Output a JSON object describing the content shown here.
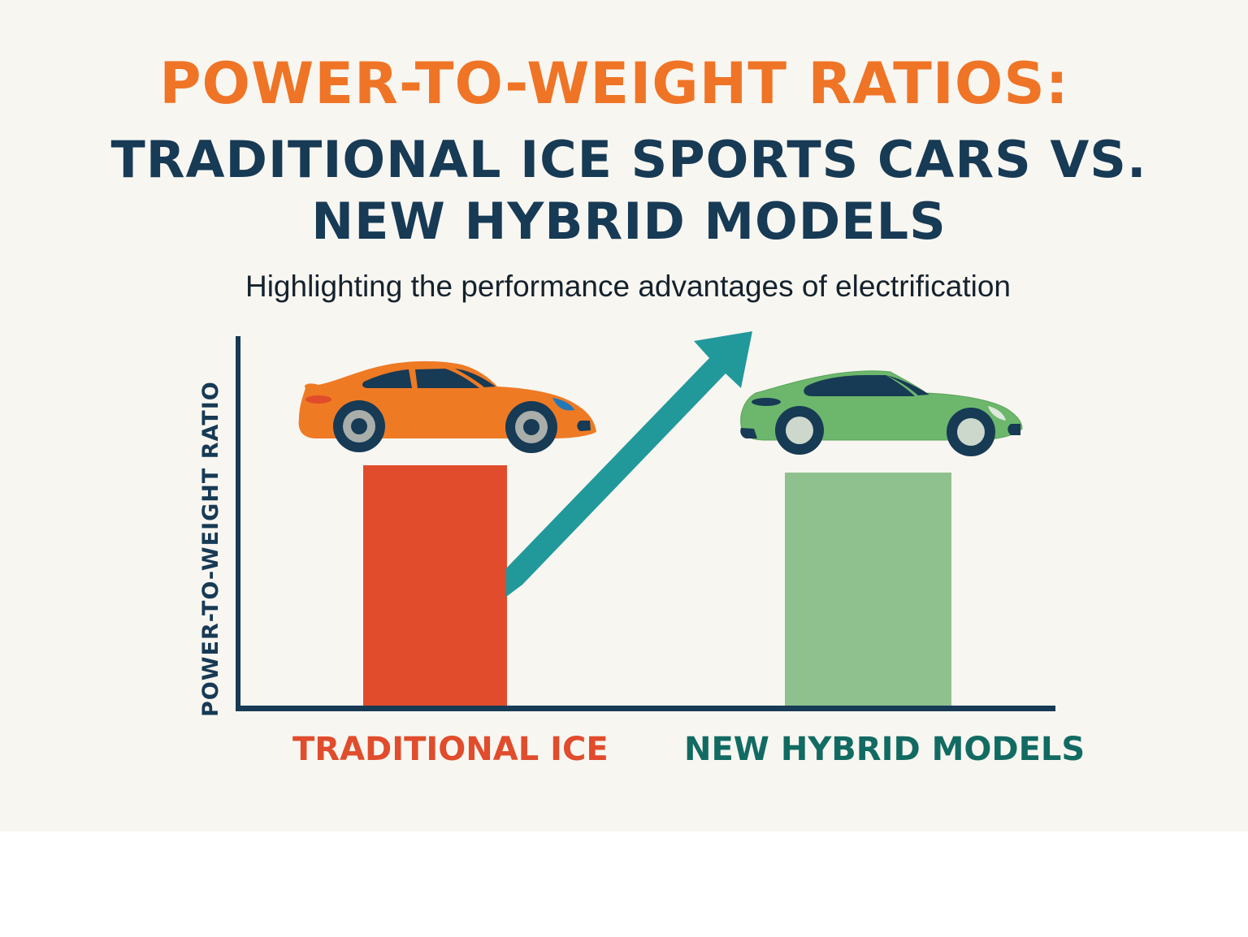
{
  "title": {
    "line1": "POWER-TO-WEIGHT RATIOS:",
    "line2": "TRADITIONAL ICE SPORTS CARS VS.",
    "line3": "NEW HYBRID MODELS"
  },
  "subtitle": "Highlighting the performance advantages of electrification",
  "axes": {
    "y_label": "POWER-TO-WEIGHT RATIO"
  },
  "categories": [
    {
      "label": "TRADITIONAL ICE",
      "color": "#e04c2c",
      "car_color": "#ef7a24",
      "icon": "orange-sports-car-icon"
    },
    {
      "label": "NEW HYBRID MODELS",
      "color": "#8fc18f",
      "label_color": "#126b62",
      "car_color": "#6cb76c",
      "icon": "green-sports-car-icon"
    }
  ],
  "annotations": {
    "arrow": "upward-trend-arrow-icon",
    "arrow_color": "#21999b"
  },
  "colors": {
    "title_accent": "#ef7426",
    "title_dark": "#173a55",
    "axis": "#173a55",
    "background": "#f8f6f1"
  },
  "chart_data": {
    "type": "bar",
    "title": "POWER-TO-WEIGHT RATIOS: TRADITIONAL ICE SPORTS CARS VS. NEW HYBRID MODELS",
    "subtitle": "Highlighting the performance advantages of electrification",
    "categories": [
      "TRADITIONAL ICE",
      "NEW HYBRID MODELS"
    ],
    "values": [
      297,
      288
    ],
    "value_units": "relative bar height (px, no numeric scale shown)",
    "xlabel": "",
    "ylabel": "POWER-TO-WEIGHT RATIO",
    "ylim": [
      0,
      460
    ],
    "grid": false,
    "legend": "none",
    "colors": [
      "#e04c2c",
      "#8fc18f"
    ],
    "annotations": [
      "Upward teal arrow from Traditional ICE bar toward New Hybrid Models",
      "Orange sports car icon above ICE bar",
      "Green sports car icon above hybrid bar"
    ]
  }
}
